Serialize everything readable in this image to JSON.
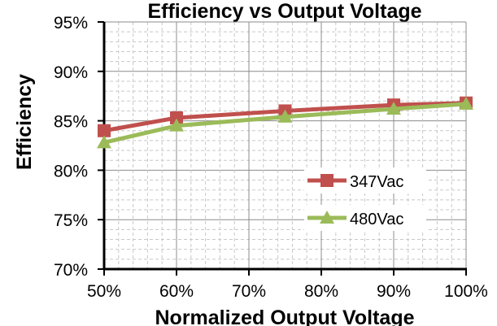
{
  "chart_data": {
    "type": "line",
    "title": "Efficiency vs Output Voltage",
    "xlabel": "Normalized Output Voltage",
    "ylabel": "Efficiency",
    "x": [
      50,
      60,
      75,
      90,
      100
    ],
    "x_ticks": [
      "50%",
      "60%",
      "70%",
      "80%",
      "90%",
      "100%"
    ],
    "y_ticks": [
      "70%",
      "75%",
      "80%",
      "85%",
      "90%",
      "95%"
    ],
    "xlim": [
      50,
      100
    ],
    "ylim": [
      70,
      95
    ],
    "grid": true,
    "legend_position": "lower-right",
    "series": [
      {
        "name": "347Vac",
        "marker": "square",
        "color": "#c0504d",
        "values": [
          84.0,
          85.3,
          86.0,
          86.6,
          86.8
        ]
      },
      {
        "name": "480Vac",
        "marker": "triangle",
        "color": "#9bbb59",
        "values": [
          82.8,
          84.5,
          85.4,
          86.2,
          86.7
        ]
      }
    ]
  }
}
